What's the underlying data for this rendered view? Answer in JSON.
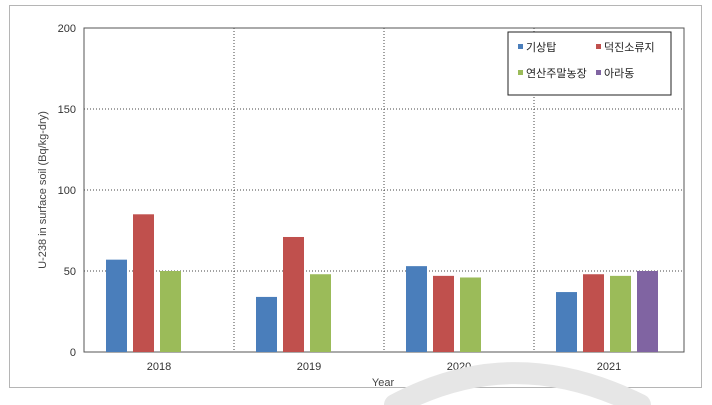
{
  "chart_data": {
    "type": "bar",
    "title": "",
    "xlabel": "Year",
    "ylabel": "U-238 in surface soil (Bq/kg-dry)",
    "ylim": [
      0,
      200
    ],
    "yticks": [
      0,
      50,
      100,
      150,
      200
    ],
    "grid": true,
    "legend_position": "top-right",
    "categories": [
      "2018",
      "2019",
      "2020",
      "2021"
    ],
    "series": [
      {
        "name": "기상탑",
        "color": "#4a7ebb",
        "values": [
          57,
          34,
          53,
          37
        ]
      },
      {
        "name": "덕진소류지",
        "color": "#c0504d",
        "values": [
          85,
          71,
          47,
          48
        ]
      },
      {
        "name": "연산주말농장",
        "color": "#9bbb59",
        "values": [
          50,
          48,
          46,
          47
        ]
      },
      {
        "name": "아라동",
        "color": "#8064a2",
        "values": [
          null,
          null,
          null,
          50
        ]
      }
    ]
  }
}
